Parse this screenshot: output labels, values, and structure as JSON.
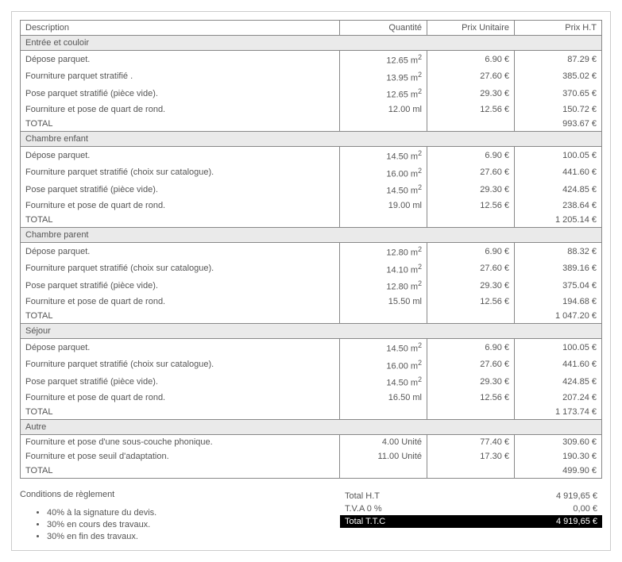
{
  "headers": {
    "desc": "Description",
    "qty": "Quantité",
    "unit": "Prix Unitaire",
    "price": "Prix H.T"
  },
  "sections": [
    {
      "title": "Entrée et couloir",
      "lines": [
        {
          "desc": "Dépose parquet.",
          "qty": "12.65 m²",
          "unit": "6.90 €",
          "price": "87.29 €"
        },
        {
          "desc": "Fourniture parquet stratifié .",
          "qty": "13.95 m²",
          "unit": "27.60 €",
          "price": "385.02 €"
        },
        {
          "desc": "Pose parquet stratifié (pièce vide).",
          "qty": "12.65 m²",
          "unit": "29.30 €",
          "price": "370.65 €"
        },
        {
          "desc": "Fourniture et pose de quart de rond.",
          "qty": "12.00 ml",
          "unit": "12.56 €",
          "price": "150.72 €"
        }
      ],
      "total_label": "TOTAL",
      "total_price": "993.67 €"
    },
    {
      "title": "Chambre enfant",
      "lines": [
        {
          "desc": "Dépose parquet.",
          "qty": "14.50 m²",
          "unit": "6.90 €",
          "price": "100.05 €"
        },
        {
          "desc": "Fourniture parquet stratifié (choix sur catalogue).",
          "qty": "16.00 m²",
          "unit": "27.60 €",
          "price": "441.60 €"
        },
        {
          "desc": "Pose parquet stratifié (pièce vide).",
          "qty": "14.50 m²",
          "unit": "29.30 €",
          "price": "424.85 €"
        },
        {
          "desc": "Fourniture et pose de quart de rond.",
          "qty": "19.00 ml",
          "unit": "12.56 €",
          "price": "238.64 €"
        }
      ],
      "total_label": "TOTAL",
      "total_price": "1 205.14 €"
    },
    {
      "title": "Chambre parent",
      "lines": [
        {
          "desc": "Dépose parquet.",
          "qty": "12.80 m²",
          "unit": "6.90 €",
          "price": "88.32 €"
        },
        {
          "desc": "Fourniture parquet stratifié (choix sur catalogue).",
          "qty": "14.10 m²",
          "unit": "27.60 €",
          "price": "389.16 €"
        },
        {
          "desc": "Pose parquet stratifié (pièce vide).",
          "qty": "12.80 m²",
          "unit": "29.30 €",
          "price": "375.04 €"
        },
        {
          "desc": "Fourniture et pose de quart de rond.",
          "qty": "15.50 ml",
          "unit": "12.56 €",
          "price": "194.68 €"
        }
      ],
      "total_label": "TOTAL",
      "total_price": "1 047.20 €"
    },
    {
      "title": "Séjour",
      "lines": [
        {
          "desc": "Dépose parquet.",
          "qty": "14.50 m²",
          "unit": "6.90 €",
          "price": "100.05 €"
        },
        {
          "desc": "Fourniture parquet stratifié (choix sur catalogue).",
          "qty": "16.00 m²",
          "unit": "27.60 €",
          "price": "441.60 €"
        },
        {
          "desc": "Pose parquet stratifié (pièce vide).",
          "qty": "14.50 m²",
          "unit": "29.30 €",
          "price": "424.85 €"
        },
        {
          "desc": "Fourniture et pose de quart de rond.",
          "qty": "16.50 ml",
          "unit": "12.56 €",
          "price": "207.24 €"
        }
      ],
      "total_label": "TOTAL",
      "total_price": "1 173.74 €"
    },
    {
      "title": "Autre",
      "lines": [
        {
          "desc": "Fourniture et pose d'une sous-couche phonique.",
          "qty": "4.00 Unité",
          "unit": "77.40 €",
          "price": "309.60 €"
        },
        {
          "desc": "Fourniture et pose seuil d'adaptation.",
          "qty": "11.00 Unité",
          "unit": "17.30 €",
          "price": "190.30 €"
        }
      ],
      "total_label": "TOTAL",
      "total_price": "499.90 €"
    }
  ],
  "conditions": {
    "title": "Conditions de règlement",
    "items": [
      "40% à la signature du devis.",
      "30% en cours des travaux.",
      "30% en fin des travaux."
    ]
  },
  "totals": {
    "ht_label": "Total H.T",
    "ht_value": "4 919,65 €",
    "tva_label": "T.V.A 0 %",
    "tva_value": "0,00 €",
    "ttc_label": "Total T.T.C",
    "ttc_value": "4 919,65 €"
  }
}
